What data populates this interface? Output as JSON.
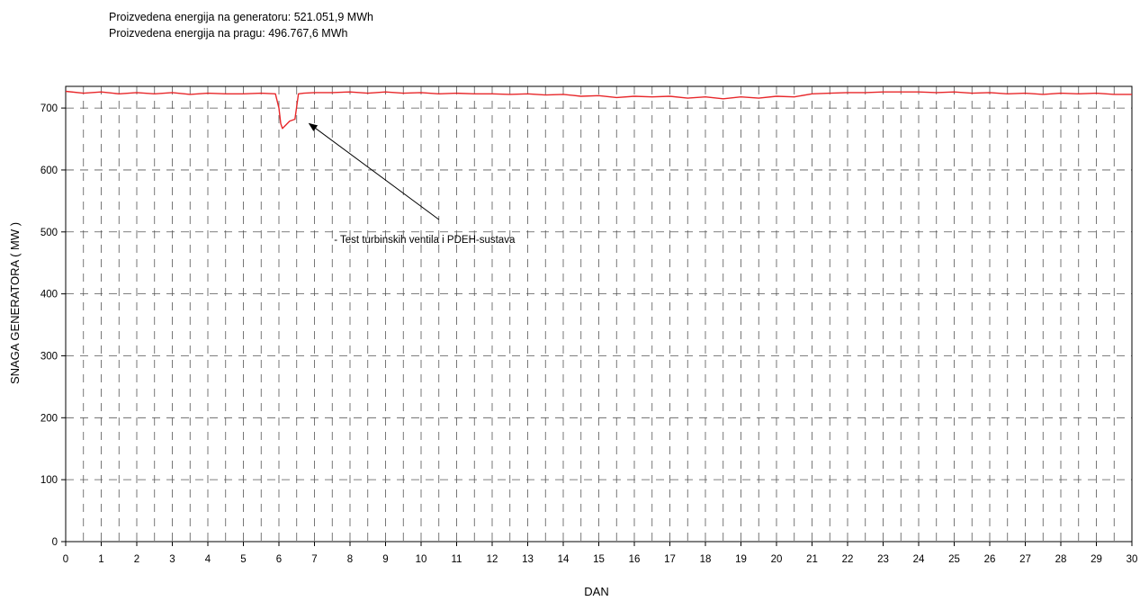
{
  "header": {
    "line1": "Proizvedena energija na generatoru: 521.051,9 MWh",
    "line2": "Proizvedena energija na pragu: 496.767,6 MWh"
  },
  "chart_data": {
    "type": "line",
    "xlabel": "DAN",
    "ylabel": "SNAGA GENERATORA  ( MW )",
    "xlim": [
      0,
      30
    ],
    "ylim": [
      0,
      735
    ],
    "xticks": [
      0,
      1,
      2,
      3,
      4,
      5,
      6,
      7,
      8,
      9,
      10,
      11,
      12,
      13,
      14,
      15,
      16,
      17,
      18,
      19,
      20,
      21,
      22,
      23,
      24,
      25,
      26,
      27,
      28,
      29,
      30
    ],
    "yticks": [
      0,
      100,
      200,
      300,
      400,
      500,
      600,
      700
    ],
    "grid": true,
    "line_color": "#e8272a",
    "series": [
      {
        "x": [
          0,
          0.5,
          1,
          1.5,
          2,
          2.5,
          3,
          3.5,
          4,
          4.5,
          5,
          5.5,
          5.9,
          6.0,
          6.05,
          6.1,
          6.2,
          6.3,
          6.45,
          6.55,
          6.7,
          7,
          7.5,
          8,
          8.5,
          9,
          9.5,
          10,
          10.5,
          11,
          11.5,
          12,
          12.5,
          13,
          13.5,
          14,
          14.5,
          15,
          15.5,
          16,
          16.5,
          17,
          17.5,
          18,
          18.5,
          19,
          19.5,
          20,
          20.5,
          21,
          21.5,
          22,
          22.5,
          23,
          23.5,
          24,
          24.5,
          25,
          25.5,
          26,
          26.5,
          27,
          27.5,
          28,
          28.5,
          29,
          29.5,
          30
        ],
        "y": [
          727,
          724,
          726,
          723,
          725,
          723,
          725,
          722,
          724,
          723,
          723,
          724,
          723,
          700,
          675,
          667,
          673,
          679,
          682,
          723,
          724,
          725,
          725,
          726,
          724,
          726,
          724,
          725,
          723,
          724,
          723,
          723,
          722,
          723,
          721,
          722,
          719,
          720,
          717,
          719,
          718,
          719,
          716,
          718,
          715,
          718,
          716,
          719,
          718,
          723,
          724,
          725,
          725,
          726,
          726,
          726,
          725,
          726,
          724,
          725,
          723,
          724,
          722,
          724,
          723,
          724,
          722,
          722
        ]
      }
    ],
    "annotations": [
      {
        "text": "- Test turbinskih ventila i PDEH-sustava",
        "text_x": 7.55,
        "text_y": 500,
        "arrow_from": [
          10.5,
          520
        ],
        "arrow_to": [
          6.85,
          675
        ]
      }
    ]
  }
}
